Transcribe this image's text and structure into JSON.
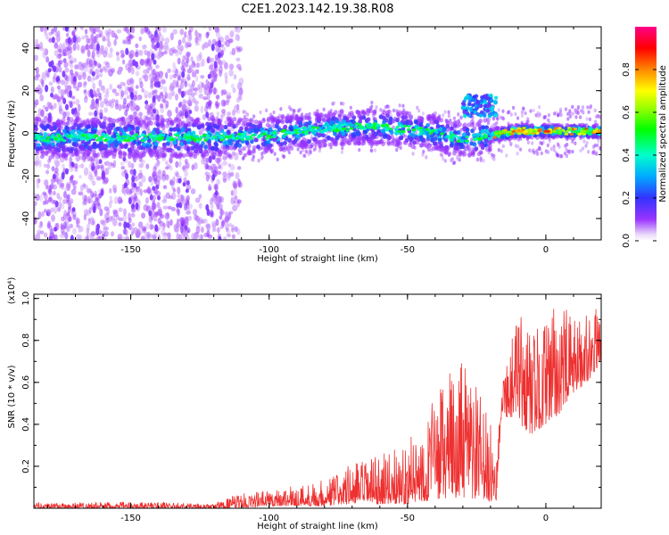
{
  "title": "C2E1.2023.142.19.38.R08",
  "chart_data": [
    {
      "type": "heatmap",
      "xlabel": "Height of straight line (km)",
      "ylabel": "Frequency (Hz)",
      "xlim": [
        -185,
        20
      ],
      "ylim": [
        -50,
        50
      ],
      "xticks": [
        -150,
        -100,
        -50,
        0
      ],
      "yticks": [
        -40,
        -20,
        0,
        20,
        40
      ],
      "colorbar": {
        "label": "Normalized spectral amplitude",
        "range": [
          0,
          1
        ],
        "ticks": [
          0.0,
          0.2,
          0.4,
          0.6,
          0.8
        ],
        "tick_labels": [
          "0.0",
          "0.2",
          "0.4",
          "0.6",
          "0.8"
        ]
      },
      "ridge": {
        "x": [
          -185,
          -160,
          -140,
          -120,
          -100,
          -90,
          -80,
          -70,
          -60,
          -50,
          -40,
          -30,
          -25,
          -20,
          -10,
          0,
          10,
          20
        ],
        "freq": [
          -2,
          -2,
          -2,
          -2,
          -1,
          1,
          2,
          3,
          3,
          2,
          0,
          -3,
          -2,
          -1,
          1,
          1,
          1,
          1
        ]
      },
      "secondary_feature": {
        "x": [
          -30,
          -18
        ],
        "freq": [
          8,
          18
        ]
      }
    },
    {
      "type": "line",
      "xlabel": "Height of straight line (km)",
      "ylabel": "SNR (10 * v/v)",
      "yscale_label": "(x10⁴)",
      "xlim": [
        -185,
        20
      ],
      "ylim": [
        0,
        1.02
      ],
      "xticks": [
        -150,
        -100,
        -50,
        0
      ],
      "yticks": [
        0.2,
        0.4,
        0.6,
        0.8,
        1.0
      ],
      "ytick_labels": [
        "0.2",
        "0.4",
        "0.6",
        "0.8",
        "1.0"
      ],
      "series": [
        {
          "color": "#ee3030",
          "envelope_x": [
            -185,
            -160,
            -140,
            -120,
            -115,
            -110,
            -100,
            -90,
            -80,
            -70,
            -60,
            -50,
            -45,
            -40,
            -35,
            -30,
            -25,
            -20,
            -18,
            -16,
            -10,
            -5,
            0,
            5,
            10,
            15,
            20
          ],
          "envelope_low": [
            0.0,
            0.0,
            0.0,
            0.0,
            0.0,
            0.0,
            0.01,
            0.01,
            0.01,
            0.02,
            0.02,
            0.02,
            0.03,
            0.04,
            0.05,
            0.05,
            0.04,
            0.03,
            0.02,
            0.45,
            0.4,
            0.35,
            0.4,
            0.45,
            0.55,
            0.6,
            0.7
          ],
          "envelope_high": [
            0.03,
            0.03,
            0.03,
            0.02,
            0.05,
            0.07,
            0.09,
            0.11,
            0.14,
            0.22,
            0.25,
            0.32,
            0.4,
            0.55,
            0.65,
            0.7,
            0.6,
            0.4,
            0.25,
            0.65,
            0.95,
            0.85,
            0.9,
            1.0,
            0.9,
            0.95,
            0.95
          ]
        }
      ]
    }
  ]
}
